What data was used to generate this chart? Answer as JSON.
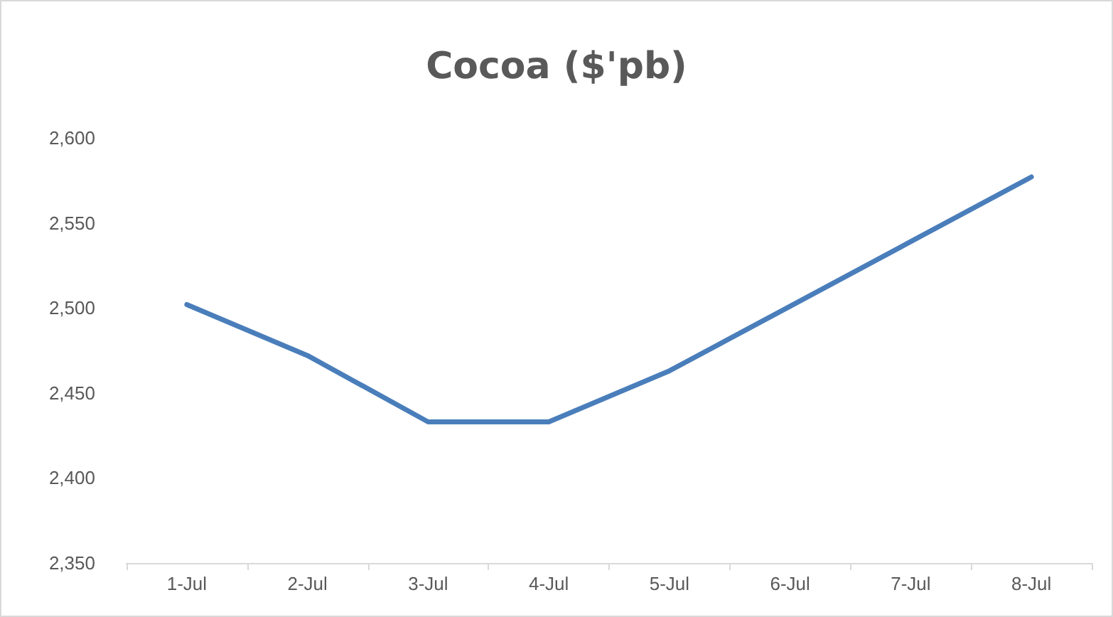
{
  "chart_data": {
    "type": "line",
    "title": "Cocoa ($'pb)",
    "categories": [
      "1-Jul",
      "2-Jul",
      "3-Jul",
      "4-Jul",
      "5-Jul",
      "6-Jul",
      "7-Jul",
      "8-Jul"
    ],
    "series": [
      {
        "color": "#4a7ebb",
        "values": [
          2502,
          2472,
          2433,
          2433,
          2463,
          2501,
          2539,
          2577
        ]
      }
    ],
    "ylim": [
      2350,
      2600
    ],
    "yticks": [
      {
        "value": 2350,
        "label": "2,350"
      },
      {
        "value": 2400,
        "label": "2,400"
      },
      {
        "value": 2450,
        "label": "2,450"
      },
      {
        "value": 2500,
        "label": "2,500"
      },
      {
        "value": 2550,
        "label": "2,550"
      },
      {
        "value": 2600,
        "label": "2,600"
      }
    ],
    "grid": false,
    "marker": "none",
    "line_style": "solid"
  }
}
